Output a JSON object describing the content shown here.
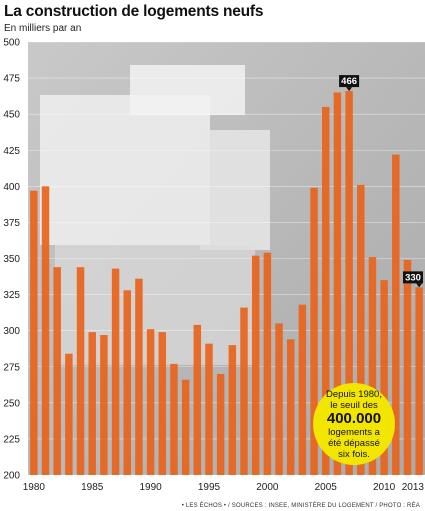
{
  "header": {
    "title": "La construction de logements neufs",
    "subtitle": "En milliers par an"
  },
  "callout": {
    "line1": "Depuis 1980,",
    "line2": "le seuil des",
    "line3": "400.000",
    "line4": "logements a",
    "line5": "été dépassé",
    "line6": "six fois."
  },
  "footer": {
    "source": "• LES ÉCHOS • / SOURCES : INSEE, MINISTÈRE DU LOGEMENT / PHOTO : RÉA"
  },
  "colors": {
    "bar": "#e8641c",
    "label_bg": "#111111",
    "label_text": "#ffffff",
    "callout": "#f2e600"
  },
  "chart_data": {
    "type": "bar",
    "title": "La construction de logements neufs",
    "ylabel": "En milliers par an",
    "ylim": [
      200,
      500
    ],
    "yticks": [
      200,
      225,
      250,
      275,
      300,
      325,
      350,
      375,
      400,
      425,
      450,
      475,
      500
    ],
    "xtick_labels": [
      "1980",
      "1985",
      "1990",
      "1995",
      "2000",
      "2005",
      "2010",
      "2013"
    ],
    "categories": [
      "1980",
      "1981",
      "1982",
      "1983",
      "1984",
      "1985",
      "1986",
      "1987",
      "1988",
      "1989",
      "1990",
      "1991",
      "1992",
      "1993",
      "1994",
      "1995",
      "1996",
      "1997",
      "1998",
      "1999",
      "2000",
      "2001",
      "2002",
      "2003",
      "2004",
      "2005",
      "2006",
      "2007",
      "2008",
      "2009",
      "2010",
      "2011",
      "2012",
      "2013"
    ],
    "values": [
      397,
      400,
      344,
      284,
      344,
      299,
      297,
      343,
      328,
      336,
      301,
      299,
      277,
      266,
      304,
      291,
      270,
      290,
      316,
      352,
      354,
      305,
      294,
      318,
      399,
      455,
      465,
      466,
      401,
      351,
      335,
      422,
      349,
      330
    ],
    "data_labels": [
      {
        "x": "2007",
        "value": 466,
        "text": "466"
      },
      {
        "x": "2013",
        "value": 330,
        "text": "330"
      }
    ]
  }
}
